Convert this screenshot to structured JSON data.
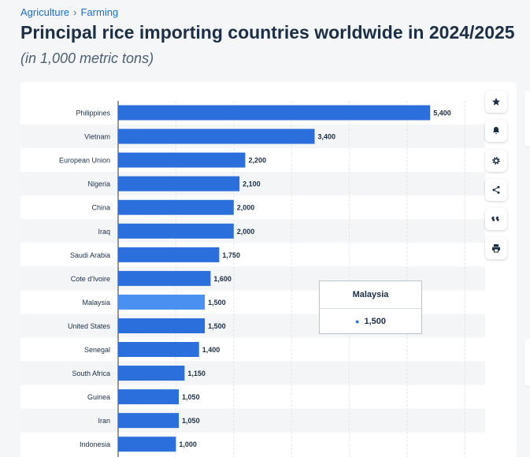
{
  "breadcrumb": {
    "section": "Agriculture",
    "separator": "›",
    "subsection": "Farming"
  },
  "page": {
    "title": "Principal rice importing countries worldwide in 2024/2025",
    "subtitle": "(in 1,000 metric tons)"
  },
  "toolbar": {
    "icons": [
      "star-icon",
      "bell-icon",
      "gear-icon",
      "share-icon",
      "quote-icon",
      "print-icon"
    ]
  },
  "tooltip": {
    "country": "Malaysia",
    "value": "1,500"
  },
  "colors": {
    "bar": "#2a6fdb",
    "bar_highlight": "#4a90f0",
    "text": "#1c2f46",
    "link": "#1a6fd4"
  },
  "chart_data": {
    "type": "bar",
    "orientation": "horizontal",
    "categories": [
      "Philippines",
      "Vietnam",
      "European Union",
      "Nigeria",
      "China",
      "Iraq",
      "Saudi Arabia",
      "Cote d'Ivoire",
      "Malaysia",
      "United States",
      "Senegal",
      "South Africa",
      "Guinea",
      "Iran",
      "Indonesia"
    ],
    "values": [
      5400,
      3400,
      2200,
      2100,
      2000,
      2000,
      1750,
      1600,
      1500,
      1500,
      1400,
      1150,
      1050,
      1050,
      1000
    ],
    "value_labels": [
      "5,400",
      "3,400",
      "2,200",
      "2,100",
      "2,000",
      "2,000",
      "1,750",
      "1,600",
      "1,500",
      "1,500",
      "1,400",
      "1,150",
      "1,050",
      "1,050",
      "1,000"
    ],
    "highlighted_category": "Malaysia",
    "xlim": [
      0,
      6500
    ],
    "grid": true,
    "alternating_row_shading": true
  }
}
